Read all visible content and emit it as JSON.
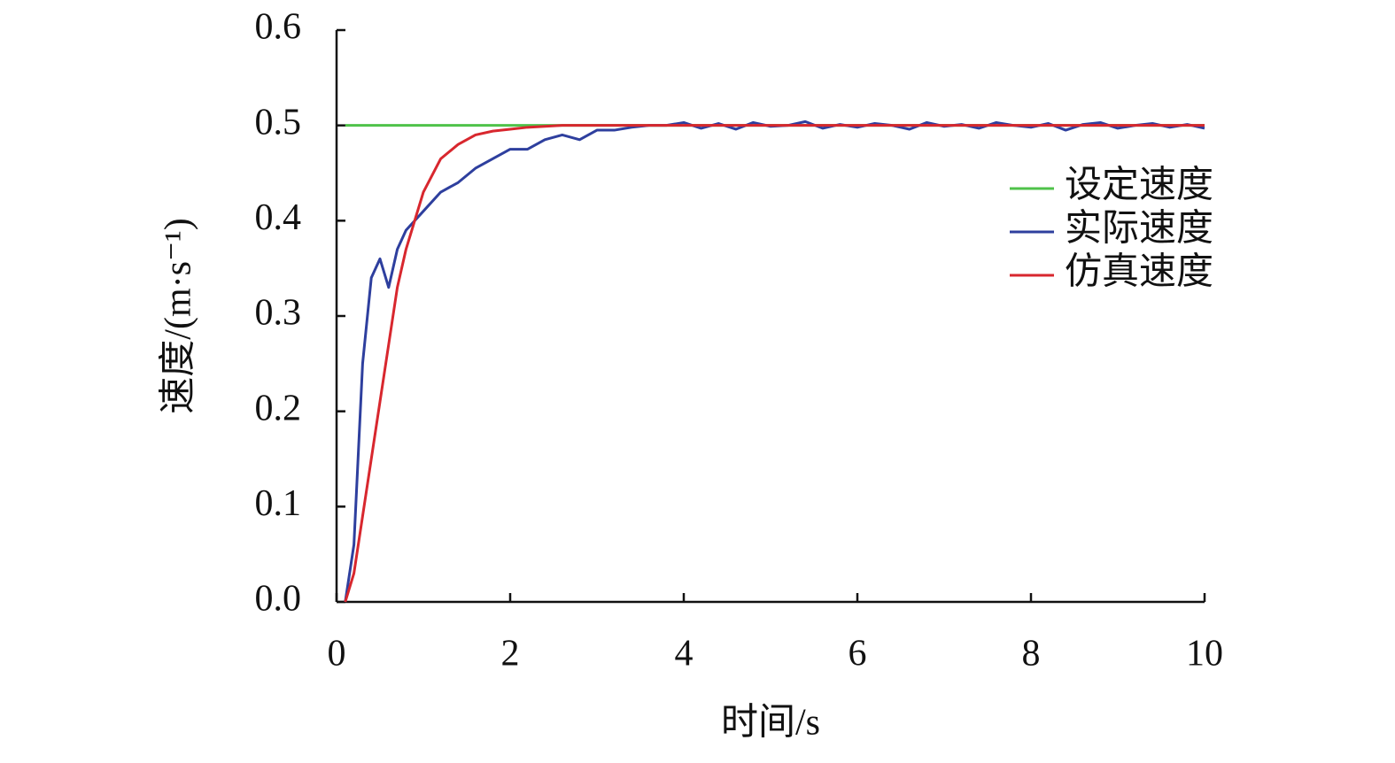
{
  "chart_data": {
    "type": "line",
    "xlabel": "时间/s",
    "ylabel": "速度/(m·s⁻¹)",
    "x": [
      0.1,
      0.2,
      0.3,
      0.4,
      0.5,
      0.6,
      0.7,
      0.8,
      0.9,
      1.0,
      1.2,
      1.4,
      1.6,
      1.8,
      2.0,
      2.2,
      2.4,
      2.6,
      2.8,
      3.0,
      3.2,
      3.4,
      3.6,
      3.8,
      4.0,
      4.2,
      4.4,
      4.6,
      4.8,
      5.0,
      5.2,
      5.4,
      5.6,
      5.8,
      6.0,
      6.2,
      6.4,
      6.6,
      6.8,
      7.0,
      7.2,
      7.4,
      7.6,
      7.8,
      8.0,
      8.2,
      8.4,
      8.6,
      8.8,
      9.0,
      9.2,
      9.4,
      9.6,
      9.8,
      10.0
    ],
    "series": [
      {
        "name": "设定速度",
        "color": "#4fc24a",
        "values": [
          0.5,
          0.5,
          0.5,
          0.5,
          0.5,
          0.5,
          0.5,
          0.5,
          0.5,
          0.5,
          0.5,
          0.5,
          0.5,
          0.5,
          0.5,
          0.5,
          0.5,
          0.5,
          0.5,
          0.5,
          0.5,
          0.5,
          0.5,
          0.5,
          0.5,
          0.5,
          0.5,
          0.5,
          0.5,
          0.5,
          0.5,
          0.5,
          0.5,
          0.5,
          0.5,
          0.5,
          0.5,
          0.5,
          0.5,
          0.5,
          0.5,
          0.5,
          0.5,
          0.5,
          0.5,
          0.5,
          0.5,
          0.5,
          0.5,
          0.5,
          0.5,
          0.5,
          0.5,
          0.5,
          0.5
        ]
      },
      {
        "name": "实际速度",
        "color": "#2e3f9e",
        "values": [
          0.0,
          0.06,
          0.25,
          0.34,
          0.36,
          0.33,
          0.37,
          0.39,
          0.4,
          0.41,
          0.43,
          0.44,
          0.455,
          0.465,
          0.475,
          0.475,
          0.485,
          0.49,
          0.485,
          0.495,
          0.495,
          0.498,
          0.5,
          0.5,
          0.503,
          0.497,
          0.502,
          0.496,
          0.503,
          0.499,
          0.5,
          0.504,
          0.497,
          0.501,
          0.498,
          0.502,
          0.5,
          0.496,
          0.503,
          0.499,
          0.501,
          0.497,
          0.503,
          0.5,
          0.498,
          0.502,
          0.495,
          0.501,
          0.503,
          0.497,
          0.5,
          0.502,
          0.498,
          0.501,
          0.497
        ]
      },
      {
        "name": "仿真速度",
        "color": "#d8272e",
        "values": [
          0.0,
          0.03,
          0.09,
          0.15,
          0.21,
          0.27,
          0.33,
          0.37,
          0.4,
          0.43,
          0.465,
          0.48,
          0.49,
          0.494,
          0.496,
          0.498,
          0.499,
          0.5,
          0.5,
          0.5,
          0.5,
          0.5,
          0.5,
          0.5,
          0.5,
          0.5,
          0.5,
          0.5,
          0.5,
          0.5,
          0.5,
          0.5,
          0.5,
          0.5,
          0.5,
          0.5,
          0.5,
          0.5,
          0.5,
          0.5,
          0.5,
          0.5,
          0.5,
          0.5,
          0.5,
          0.5,
          0.5,
          0.5,
          0.5,
          0.5,
          0.5,
          0.5,
          0.5,
          0.5,
          0.5
        ]
      }
    ],
    "xlim": [
      0,
      10
    ],
    "xticks": [
      0,
      2,
      4,
      6,
      8,
      10
    ],
    "ylim": [
      0,
      0.6
    ],
    "yticks": [
      {
        "value": 0,
        "label": "0.0"
      },
      0.1,
      0.2,
      0.3,
      0.4,
      0.5,
      0.6
    ],
    "grid": false,
    "legend": "upper right"
  }
}
